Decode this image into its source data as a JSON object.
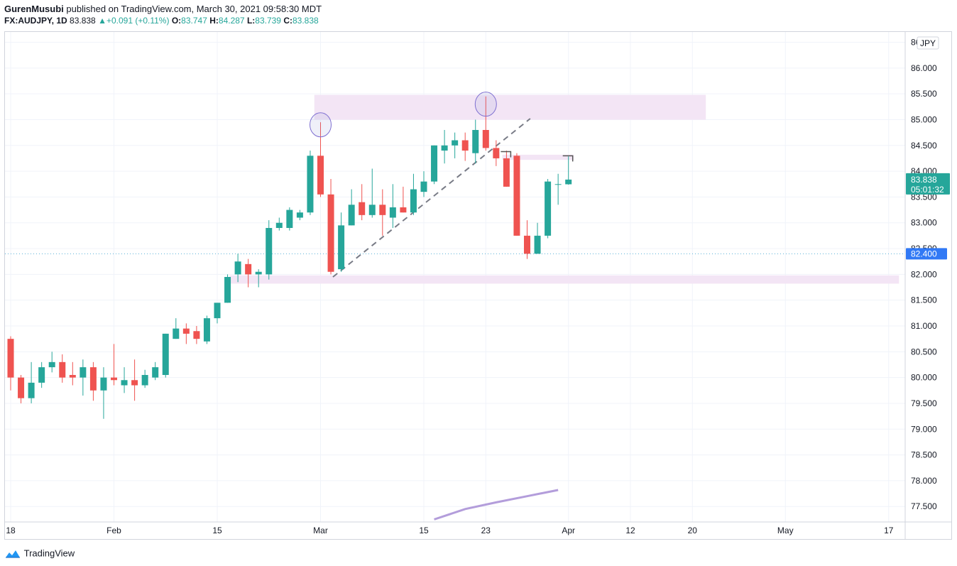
{
  "header": {
    "author": "GurenMusubi",
    "published_text": "published on TradingView.com, March 30, 2021 09:58:30 MDT",
    "symbol": "FX:AUDJPY, 1D",
    "last": "83.838",
    "change_arrow": "▲",
    "change": "+0.091 (+0.11%)",
    "o_label": "O:",
    "o": "83.747",
    "h_label": "H:",
    "h": "84.287",
    "l_label": "L:",
    "l": "83.739",
    "c_label": "C:",
    "c": "83.838"
  },
  "footer": {
    "brand": "TradingView",
    "logo_icon": "tradingview-cloud-icon"
  },
  "colors": {
    "up": "#26a69a",
    "down": "#ef5350",
    "grid": "#f0f3fa",
    "zone": "#f3e5f5",
    "ellipse": "#7e6fd1",
    "ma": "#b39ddb",
    "trend": "#787b86",
    "dotted": "#5ab0d6"
  },
  "chart_data": {
    "type": "candlestick",
    "symbol": "FX:AUDJPY",
    "interval": "1D",
    "currency_label": "JPY",
    "y_ticks": [
      "77.500",
      "78.000",
      "78.500",
      "79.000",
      "79.500",
      "80.000",
      "80.500",
      "81.000",
      "81.500",
      "82.000",
      "82.500",
      "83.000",
      "83.500",
      "84.000",
      "84.500",
      "85.000",
      "85.500",
      "86.000",
      "86.500"
    ],
    "ylim": [
      77.2,
      86.7
    ],
    "x_ticks": [
      {
        "label": "18",
        "idx": 0
      },
      {
        "label": "Feb",
        "idx": 10
      },
      {
        "label": "15",
        "idx": 20
      },
      {
        "label": "Mar",
        "idx": 30
      },
      {
        "label": "15",
        "idx": 40
      },
      {
        "label": "23",
        "idx": 46
      },
      {
        "label": "Apr",
        "idx": 54
      },
      {
        "label": "12",
        "idx": 60
      },
      {
        "label": "20",
        "idx": 66
      },
      {
        "label": "May",
        "idx": 75
      },
      {
        "label": "17",
        "idx": 85
      }
    ],
    "last_price": {
      "value": "83.838",
      "countdown": "05:01:32",
      "price": 83.838
    },
    "horizontal_line": {
      "value": "82.400",
      "price": 82.4
    },
    "candles": [
      {
        "o": 80.75,
        "h": 80.8,
        "l": 79.75,
        "c": 80.0
      },
      {
        "o": 80.0,
        "h": 80.05,
        "l": 79.5,
        "c": 79.6
      },
      {
        "o": 79.6,
        "h": 80.3,
        "l": 79.5,
        "c": 79.9
      },
      {
        "o": 79.9,
        "h": 80.3,
        "l": 79.8,
        "c": 80.2
      },
      {
        "o": 80.2,
        "h": 80.5,
        "l": 80.1,
        "c": 80.3
      },
      {
        "o": 80.3,
        "h": 80.45,
        "l": 79.9,
        "c": 80.0
      },
      {
        "o": 80.05,
        "h": 80.3,
        "l": 79.85,
        "c": 80.0
      },
      {
        "o": 80.0,
        "h": 80.35,
        "l": 79.65,
        "c": 80.2
      },
      {
        "o": 80.2,
        "h": 80.3,
        "l": 79.55,
        "c": 79.75
      },
      {
        "o": 79.75,
        "h": 80.2,
        "l": 79.2,
        "c": 80.0
      },
      {
        "o": 80.0,
        "h": 80.65,
        "l": 79.85,
        "c": 79.95
      },
      {
        "o": 79.85,
        "h": 80.2,
        "l": 79.7,
        "c": 79.95
      },
      {
        "o": 79.95,
        "h": 80.35,
        "l": 79.55,
        "c": 79.85
      },
      {
        "o": 79.85,
        "h": 80.15,
        "l": 79.8,
        "c": 80.05
      },
      {
        "o": 80.0,
        "h": 80.3,
        "l": 79.95,
        "c": 80.2
      },
      {
        "o": 80.05,
        "h": 80.85,
        "l": 80.0,
        "c": 80.85
      },
      {
        "o": 80.75,
        "h": 81.15,
        "l": 80.75,
        "c": 80.95
      },
      {
        "o": 80.95,
        "h": 81.05,
        "l": 80.65,
        "c": 80.85
      },
      {
        "o": 80.9,
        "h": 81.0,
        "l": 80.65,
        "c": 80.75
      },
      {
        "o": 80.7,
        "h": 81.2,
        "l": 80.65,
        "c": 81.15
      },
      {
        "o": 81.15,
        "h": 81.4,
        "l": 81.05,
        "c": 81.45
      },
      {
        "o": 81.45,
        "h": 82.0,
        "l": 81.45,
        "c": 81.95
      },
      {
        "o": 82.0,
        "h": 82.4,
        "l": 81.85,
        "c": 82.25
      },
      {
        "o": 82.2,
        "h": 82.3,
        "l": 81.75,
        "c": 82.0
      },
      {
        "o": 82.0,
        "h": 82.1,
        "l": 81.75,
        "c": 82.05
      },
      {
        "o": 82.0,
        "h": 83.05,
        "l": 81.9,
        "c": 82.9
      },
      {
        "o": 82.9,
        "h": 83.1,
        "l": 82.85,
        "c": 83.0
      },
      {
        "o": 82.9,
        "h": 83.3,
        "l": 82.85,
        "c": 83.25
      },
      {
        "o": 83.1,
        "h": 83.25,
        "l": 83.05,
        "c": 83.2
      },
      {
        "o": 83.2,
        "h": 84.4,
        "l": 83.15,
        "c": 84.3
      },
      {
        "o": 84.3,
        "h": 84.95,
        "l": 83.5,
        "c": 83.55
      },
      {
        "o": 83.55,
        "h": 83.85,
        "l": 82.0,
        "c": 82.05
      },
      {
        "o": 82.1,
        "h": 83.2,
        "l": 82.05,
        "c": 82.95
      },
      {
        "o": 82.95,
        "h": 83.65,
        "l": 82.95,
        "c": 83.35
      },
      {
        "o": 83.4,
        "h": 83.75,
        "l": 83.05,
        "c": 83.15
      },
      {
        "o": 83.15,
        "h": 84.05,
        "l": 83.1,
        "c": 83.35
      },
      {
        "o": 83.35,
        "h": 83.65,
        "l": 82.75,
        "c": 83.15
      },
      {
        "o": 83.1,
        "h": 83.75,
        "l": 82.9,
        "c": 83.3
      },
      {
        "o": 83.3,
        "h": 83.7,
        "l": 83.2,
        "c": 83.2
      },
      {
        "o": 83.2,
        "h": 83.95,
        "l": 83.15,
        "c": 83.65
      },
      {
        "o": 83.6,
        "h": 84.0,
        "l": 83.5,
        "c": 83.8
      },
      {
        "o": 83.8,
        "h": 84.5,
        "l": 83.75,
        "c": 84.5
      },
      {
        "o": 84.4,
        "h": 84.8,
        "l": 84.15,
        "c": 84.5
      },
      {
        "o": 84.5,
        "h": 84.75,
        "l": 84.25,
        "c": 84.6
      },
      {
        "o": 84.6,
        "h": 84.75,
        "l": 84.2,
        "c": 84.4
      },
      {
        "o": 84.35,
        "h": 85.0,
        "l": 84.15,
        "c": 84.8
      },
      {
        "o": 84.8,
        "h": 85.45,
        "l": 84.4,
        "c": 84.45
      },
      {
        "o": 84.45,
        "h": 84.6,
        "l": 84.1,
        "c": 84.25
      },
      {
        "o": 84.25,
        "h": 84.4,
        "l": 83.7,
        "c": 83.7
      },
      {
        "o": 84.3,
        "h": 84.35,
        "l": 82.75,
        "c": 82.75
      },
      {
        "o": 82.75,
        "h": 83.05,
        "l": 82.3,
        "c": 82.4
      },
      {
        "o": 82.4,
        "h": 83.0,
        "l": 82.4,
        "c": 82.75
      },
      {
        "o": 82.75,
        "h": 83.85,
        "l": 82.7,
        "c": 83.8
      },
      {
        "o": 83.75,
        "h": 83.95,
        "l": 83.35,
        "c": 83.75
      },
      {
        "o": 83.747,
        "h": 84.287,
        "l": 83.739,
        "c": 83.838
      }
    ],
    "annotations": {
      "resistance_zone": {
        "x0": 29.4,
        "x1": 67.3,
        "p_top": 85.48,
        "p_bottom": 85.0
      },
      "support_zone": {
        "x0": 21.2,
        "x1": 86,
        "p_top": 81.98,
        "p_bottom": 81.82
      },
      "small_zone": {
        "x0": 47.6,
        "x1": 54.5,
        "p_top": 84.32,
        "p_bottom": 84.22
      },
      "trend_line": {
        "x0": 31.2,
        "p0": 81.95,
        "x1": 50.3,
        "p1": 85.02
      },
      "ellipses": [
        {
          "idx": 30,
          "p": 84.9,
          "rx": 15,
          "ry": 17
        },
        {
          "idx": 46,
          "p": 85.3,
          "rx": 15,
          "ry": 17
        }
      ],
      "brackets": [
        {
          "idx": 48,
          "p": 84.38
        },
        {
          "idx": 54,
          "p": 84.3
        }
      ],
      "ma_line": [
        [
          41,
          77.25
        ],
        [
          44,
          77.45
        ],
        [
          47,
          77.58
        ],
        [
          50,
          77.7
        ],
        [
          53,
          77.82
        ]
      ]
    }
  }
}
